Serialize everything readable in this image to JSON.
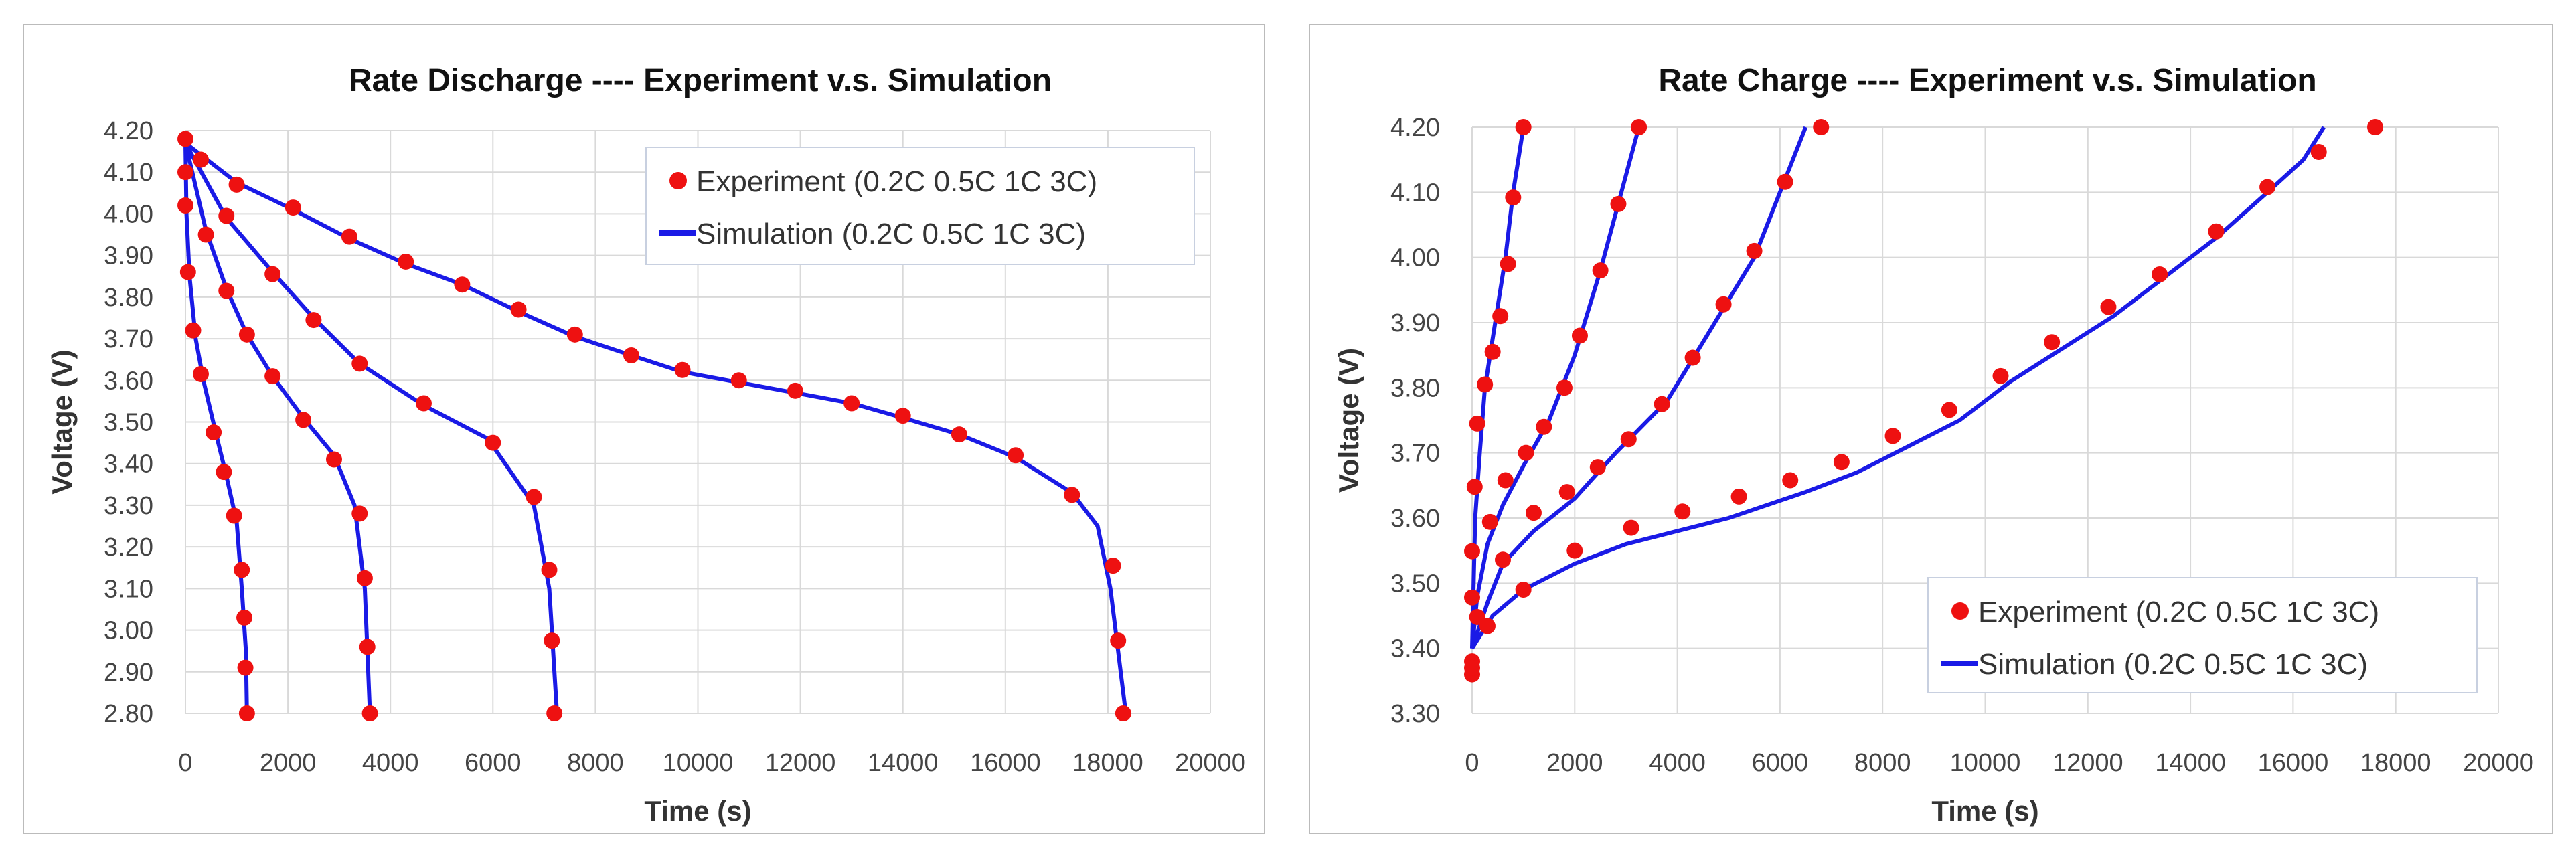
{
  "chart_data": [
    {
      "type": "scatter",
      "title": "Rate Discharge ---- Experiment v.s. Simulation",
      "xlabel": "Time (s)",
      "ylabel": "Voltage (V)",
      "xlim": [
        0,
        20000
      ],
      "ylim": [
        2.8,
        4.2
      ],
      "xticks": [
        0,
        2000,
        4000,
        6000,
        8000,
        10000,
        12000,
        14000,
        16000,
        18000,
        20000
      ],
      "yticks": [
        "2.80",
        "2.90",
        "3.00",
        "3.10",
        "3.20",
        "3.30",
        "3.40",
        "3.50",
        "3.60",
        "3.70",
        "3.80",
        "3.90",
        "4.00",
        "4.10",
        "4.20"
      ],
      "grid": true,
      "legend_position": "top-right",
      "legend": [
        "Experiment (0.2C 0.5C 1C 3C)",
        "Simulation (0.2C 0.5C 1C 3C)"
      ],
      "colors": {
        "experiment": "#ee1111",
        "simulation": "#1a1ae6"
      },
      "experiment": [
        [
          [
            0,
            4.18
          ],
          [
            300,
            4.13
          ],
          [
            1000,
            4.07
          ],
          [
            2100,
            4.015
          ],
          [
            3200,
            3.945
          ],
          [
            4300,
            3.885
          ],
          [
            5400,
            3.83
          ],
          [
            6500,
            3.77
          ],
          [
            7600,
            3.71
          ],
          [
            8700,
            3.66
          ],
          [
            9700,
            3.625
          ],
          [
            10800,
            3.6
          ],
          [
            11900,
            3.575
          ],
          [
            13000,
            3.545
          ],
          [
            14000,
            3.515
          ],
          [
            15100,
            3.47
          ],
          [
            16200,
            3.42
          ],
          [
            17300,
            3.325
          ],
          [
            18100,
            3.155
          ],
          [
            18200,
            2.975
          ],
          [
            18300,
            2.8
          ]
        ],
        [
          [
            0,
            4.1
          ],
          [
            800,
            3.995
          ],
          [
            1700,
            3.855
          ],
          [
            2500,
            3.745
          ],
          [
            3400,
            3.64
          ],
          [
            4650,
            3.545
          ],
          [
            6000,
            3.45
          ],
          [
            6800,
            3.32
          ],
          [
            7100,
            3.145
          ],
          [
            7150,
            2.975
          ],
          [
            7200,
            2.8
          ]
        ],
        [
          [
            400,
            3.95
          ],
          [
            800,
            3.815
          ],
          [
            1200,
            3.71
          ],
          [
            1700,
            3.61
          ],
          [
            2300,
            3.505
          ],
          [
            2900,
            3.41
          ],
          [
            3400,
            3.28
          ],
          [
            3500,
            3.125
          ],
          [
            3550,
            2.96
          ],
          [
            3600,
            2.8
          ]
        ],
        [
          [
            0,
            4.02
          ],
          [
            50,
            3.86
          ],
          [
            150,
            3.72
          ],
          [
            300,
            3.615
          ],
          [
            550,
            3.475
          ],
          [
            750,
            3.38
          ],
          [
            950,
            3.275
          ],
          [
            1100,
            3.145
          ],
          [
            1150,
            3.03
          ],
          [
            1170,
            2.91
          ],
          [
            1200,
            2.8
          ]
        ]
      ],
      "simulation": [
        [
          [
            0,
            4.17
          ],
          [
            1000,
            4.075
          ],
          [
            2100,
            4.01
          ],
          [
            3200,
            3.94
          ],
          [
            4300,
            3.88
          ],
          [
            5400,
            3.83
          ],
          [
            6500,
            3.765
          ],
          [
            7600,
            3.705
          ],
          [
            8700,
            3.66
          ],
          [
            9700,
            3.62
          ],
          [
            10800,
            3.595
          ],
          [
            11900,
            3.57
          ],
          [
            13000,
            3.545
          ],
          [
            14000,
            3.51
          ],
          [
            15100,
            3.47
          ],
          [
            16200,
            3.415
          ],
          [
            17300,
            3.33
          ],
          [
            17800,
            3.25
          ],
          [
            18050,
            3.1
          ],
          [
            18200,
            2.95
          ],
          [
            18350,
            2.8
          ]
        ],
        [
          [
            0,
            4.17
          ],
          [
            800,
            3.99
          ],
          [
            1700,
            3.86
          ],
          [
            2500,
            3.75
          ],
          [
            3400,
            3.64
          ],
          [
            4650,
            3.54
          ],
          [
            5900,
            3.46
          ],
          [
            6800,
            3.3
          ],
          [
            7100,
            3.1
          ],
          [
            7250,
            2.8
          ]
        ],
        [
          [
            0,
            4.17
          ],
          [
            400,
            3.96
          ],
          [
            800,
            3.82
          ],
          [
            1200,
            3.71
          ],
          [
            1700,
            3.61
          ],
          [
            2300,
            3.51
          ],
          [
            2900,
            3.42
          ],
          [
            3300,
            3.3
          ],
          [
            3500,
            3.1
          ],
          [
            3600,
            2.8
          ]
        ],
        [
          [
            0,
            4.17
          ],
          [
            20,
            4.0
          ],
          [
            80,
            3.85
          ],
          [
            200,
            3.7
          ],
          [
            350,
            3.6
          ],
          [
            600,
            3.47
          ],
          [
            800,
            3.37
          ],
          [
            1000,
            3.26
          ],
          [
            1100,
            3.1
          ],
          [
            1180,
            2.95
          ],
          [
            1200,
            2.8
          ]
        ]
      ]
    },
    {
      "type": "scatter",
      "title": "Rate Charge ---- Experiment v.s. Simulation",
      "xlabel": "Time (s)",
      "ylabel": "Voltage (V)",
      "xlim": [
        0,
        20000
      ],
      "ylim": [
        3.3,
        4.2
      ],
      "xticks": [
        0,
        2000,
        4000,
        6000,
        8000,
        10000,
        12000,
        14000,
        16000,
        18000,
        20000
      ],
      "yticks": [
        "3.30",
        "3.40",
        "3.50",
        "3.60",
        "3.70",
        "3.80",
        "3.90",
        "4.00",
        "4.10",
        "4.20"
      ],
      "grid": true,
      "legend_position": "bottom-right",
      "legend": [
        "Experiment (0.2C 0.5C 1C 3C)",
        "Simulation (0.2C 0.5C 1C 3C)"
      ],
      "colors": {
        "experiment": "#ee1111",
        "simulation": "#1a1ae6"
      },
      "experiment": [
        [
          [
            0,
            3.36
          ],
          [
            1000,
            3.49
          ],
          [
            2000,
            3.55
          ],
          [
            3100,
            3.585
          ],
          [
            4100,
            3.61
          ],
          [
            5200,
            3.633
          ],
          [
            6200,
            3.658
          ],
          [
            7200,
            3.686
          ],
          [
            8200,
            3.726
          ],
          [
            9300,
            3.766
          ],
          [
            10300,
            3.818
          ],
          [
            11300,
            3.87
          ],
          [
            12400,
            3.924
          ],
          [
            13400,
            3.974
          ],
          [
            14500,
            4.04
          ],
          [
            15500,
            4.108
          ],
          [
            16500,
            4.162
          ],
          [
            17600,
            4.2
          ]
        ],
        [
          [
            0,
            3.38
          ],
          [
            300,
            3.434
          ],
          [
            600,
            3.536
          ],
          [
            1200,
            3.608
          ],
          [
            1850,
            3.64
          ],
          [
            2450,
            3.678
          ],
          [
            3050,
            3.721
          ],
          [
            3700,
            3.775
          ],
          [
            4300,
            3.846
          ],
          [
            4900,
            3.928
          ],
          [
            5500,
            4.01
          ],
          [
            6100,
            4.116
          ],
          [
            6800,
            4.2
          ]
        ],
        [
          [
            100,
            3.448
          ],
          [
            350,
            3.594
          ],
          [
            650,
            3.658
          ],
          [
            1050,
            3.7
          ],
          [
            1400,
            3.74
          ],
          [
            1800,
            3.8
          ],
          [
            2100,
            3.88
          ],
          [
            2500,
            3.98
          ],
          [
            2850,
            4.082
          ],
          [
            3250,
            4.2
          ]
        ],
        [
          [
            0,
            3.37
          ],
          [
            0,
            3.478
          ],
          [
            0,
            3.549
          ],
          [
            50,
            3.648
          ],
          [
            100,
            3.745
          ],
          [
            250,
            3.805
          ],
          [
            400,
            3.855
          ],
          [
            550,
            3.91
          ],
          [
            700,
            3.99
          ],
          [
            800,
            4.092
          ],
          [
            1000,
            4.2
          ]
        ]
      ],
      "simulation": [
        [
          [
            0,
            3.4
          ],
          [
            400,
            3.45
          ],
          [
            1000,
            3.49
          ],
          [
            2000,
            3.53
          ],
          [
            3000,
            3.56
          ],
          [
            4000,
            3.58
          ],
          [
            5000,
            3.6
          ],
          [
            6500,
            3.64
          ],
          [
            7500,
            3.67
          ],
          [
            8500,
            3.71
          ],
          [
            9500,
            3.75
          ],
          [
            10500,
            3.81
          ],
          [
            11500,
            3.86
          ],
          [
            12500,
            3.91
          ],
          [
            13500,
            3.97
          ],
          [
            14500,
            4.03
          ],
          [
            15500,
            4.1
          ],
          [
            16200,
            4.15
          ],
          [
            16600,
            4.2
          ]
        ],
        [
          [
            0,
            3.4
          ],
          [
            300,
            3.47
          ],
          [
            600,
            3.53
          ],
          [
            1200,
            3.58
          ],
          [
            2000,
            3.63
          ],
          [
            2800,
            3.7
          ],
          [
            3800,
            3.78
          ],
          [
            4500,
            3.87
          ],
          [
            5500,
            4.0
          ],
          [
            6500,
            4.2
          ]
        ],
        [
          [
            0,
            3.4
          ],
          [
            100,
            3.48
          ],
          [
            300,
            3.56
          ],
          [
            600,
            3.62
          ],
          [
            1000,
            3.68
          ],
          [
            1500,
            3.75
          ],
          [
            2000,
            3.85
          ],
          [
            2500,
            3.98
          ],
          [
            3250,
            4.2
          ]
        ],
        [
          [
            0,
            3.4
          ],
          [
            30,
            3.5
          ],
          [
            60,
            3.6
          ],
          [
            150,
            3.7
          ],
          [
            250,
            3.8
          ],
          [
            450,
            3.9
          ],
          [
            650,
            4.0
          ],
          [
            800,
            4.1
          ],
          [
            1000,
            4.2
          ]
        ]
      ]
    }
  ]
}
